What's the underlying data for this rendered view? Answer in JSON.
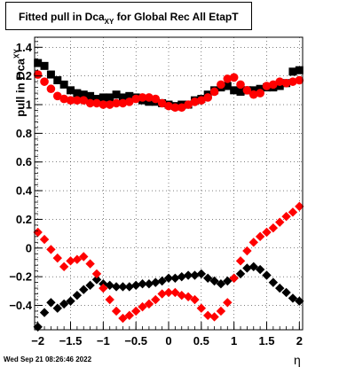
{
  "title": {
    "main": "Fitted pull in Dca",
    "sub": "XY",
    "rest": " for Global Rec All EtapT"
  },
  "ylabel": {
    "main": "pull in Dca",
    "sub": "XY"
  },
  "xlabel": "η",
  "datestamp": "Wed Sep 21 08:26:46 2022",
  "colors": {
    "series_black": "#000000",
    "series_red": "#ff0000",
    "grid": "#000000"
  },
  "chart_data": {
    "type": "scatter",
    "title": "Fitted pull in Dca_XY for Global Rec All EtapT",
    "xlabel": "η",
    "ylabel": "pull in Dca_XY",
    "xlim": [
      -2.05,
      2.05
    ],
    "ylim": [
      -0.57,
      1.47
    ],
    "xticks": [
      -2,
      -1.5,
      -1,
      -0.5,
      0,
      0.5,
      1,
      1.5,
      2
    ],
    "xtick_labels": [
      "−2",
      "−1.5",
      "−1",
      "−0.5",
      "0",
      "0.5",
      "1",
      "1.5",
      "2"
    ],
    "yticks": [
      -0.4,
      -0.2,
      0,
      0.2,
      0.4,
      0.6,
      0.8,
      1,
      1.2,
      1.4
    ],
    "ytick_labels": [
      "−0.4",
      "−0.2",
      "0",
      "0.2",
      "0.4",
      "0.6",
      "0.8",
      "1",
      "1.2",
      "1.4"
    ],
    "grid": true,
    "legend": "none",
    "series": [
      {
        "marker": "square",
        "color": "#000000",
        "x": [
          -2.0,
          -1.9,
          -1.8,
          -1.7,
          -1.6,
          -1.5,
          -1.4,
          -1.3,
          -1.2,
          -1.1,
          -1.0,
          -0.9,
          -0.8,
          -0.7,
          -0.6,
          -0.5,
          -0.4,
          -0.3,
          -0.2,
          -0.1,
          0.0,
          0.1,
          0.2,
          0.3,
          0.4,
          0.5,
          0.6,
          0.7,
          0.8,
          0.9,
          1.0,
          1.1,
          1.2,
          1.3,
          1.4,
          1.5,
          1.6,
          1.7,
          1.8,
          1.9,
          2.0
        ],
        "y": [
          1.29,
          1.27,
          1.21,
          1.17,
          1.14,
          1.1,
          1.08,
          1.07,
          1.06,
          1.04,
          1.05,
          1.05,
          1.07,
          1.05,
          1.06,
          1.05,
          1.03,
          1.02,
          1.02,
          1.01,
          1.0,
          0.99,
          1.0,
          1.0,
          1.03,
          1.04,
          1.07,
          1.1,
          1.12,
          1.13,
          1.1,
          1.09,
          1.1,
          1.1,
          1.11,
          1.12,
          1.12,
          1.13,
          1.15,
          1.23,
          1.24
        ]
      },
      {
        "marker": "circle",
        "color": "#ff0000",
        "x": [
          -2.0,
          -1.9,
          -1.8,
          -1.7,
          -1.6,
          -1.5,
          -1.4,
          -1.3,
          -1.2,
          -1.1,
          -1.0,
          -0.9,
          -0.8,
          -0.7,
          -0.6,
          -0.5,
          -0.4,
          -0.3,
          -0.2,
          -0.1,
          0.0,
          0.1,
          0.2,
          0.3,
          0.4,
          0.5,
          0.6,
          0.7,
          0.8,
          0.9,
          1.0,
          1.1,
          1.2,
          1.3,
          1.4,
          1.5,
          1.6,
          1.7,
          1.8,
          1.9,
          2.0
        ],
        "y": [
          1.21,
          1.16,
          1.11,
          1.06,
          1.04,
          1.03,
          1.03,
          1.03,
          1.01,
          1.01,
          1.0,
          1.0,
          1.01,
          1.01,
          1.02,
          1.04,
          1.05,
          1.05,
          1.04,
          1.01,
          0.99,
          0.98,
          0.98,
          1.0,
          1.02,
          1.03,
          1.05,
          1.09,
          1.14,
          1.18,
          1.19,
          1.14,
          1.1,
          1.07,
          1.08,
          1.13,
          1.14,
          1.16,
          1.15,
          1.16,
          1.17
        ]
      },
      {
        "marker": "diamond",
        "color": "#000000",
        "x": [
          -2.0,
          -1.9,
          -1.8,
          -1.7,
          -1.6,
          -1.5,
          -1.4,
          -1.3,
          -1.2,
          -1.1,
          -1.0,
          -0.9,
          -0.8,
          -0.7,
          -0.6,
          -0.5,
          -0.4,
          -0.3,
          -0.2,
          -0.1,
          0.0,
          0.1,
          0.2,
          0.3,
          0.4,
          0.5,
          0.6,
          0.7,
          0.8,
          0.9,
          1.0,
          1.1,
          1.2,
          1.3,
          1.4,
          1.5,
          1.6,
          1.7,
          1.8,
          1.9,
          2.0
        ],
        "y": [
          -0.55,
          -0.45,
          -0.38,
          -0.42,
          -0.39,
          -0.37,
          -0.33,
          -0.29,
          -0.26,
          -0.22,
          -0.25,
          -0.26,
          -0.27,
          -0.27,
          -0.27,
          -0.26,
          -0.25,
          -0.25,
          -0.24,
          -0.23,
          -0.21,
          -0.21,
          -0.2,
          -0.19,
          -0.19,
          -0.18,
          -0.21,
          -0.23,
          -0.25,
          -0.23,
          -0.21,
          -0.18,
          -0.14,
          -0.13,
          -0.15,
          -0.19,
          -0.24,
          -0.28,
          -0.31,
          -0.35,
          -0.37
        ]
      },
      {
        "marker": "diamond",
        "color": "#ff0000",
        "x": [
          -2.0,
          -1.9,
          -1.8,
          -1.7,
          -1.6,
          -1.5,
          -1.4,
          -1.3,
          -1.2,
          -1.1,
          -1.0,
          -0.9,
          -0.8,
          -0.7,
          -0.6,
          -0.5,
          -0.4,
          -0.3,
          -0.2,
          -0.1,
          0.0,
          0.1,
          0.2,
          0.3,
          0.4,
          0.5,
          0.6,
          0.7,
          0.8,
          0.9,
          1.0,
          1.1,
          1.2,
          1.3,
          1.4,
          1.5,
          1.6,
          1.7,
          1.8,
          1.9,
          2.0
        ],
        "y": [
          0.11,
          0.06,
          -0.01,
          -0.07,
          -0.13,
          -0.09,
          -0.08,
          -0.06,
          -0.11,
          -0.18,
          -0.28,
          -0.36,
          -0.44,
          -0.49,
          -0.47,
          -0.44,
          -0.41,
          -0.39,
          -0.36,
          -0.32,
          -0.31,
          -0.31,
          -0.33,
          -0.34,
          -0.36,
          -0.42,
          -0.47,
          -0.48,
          -0.44,
          -0.38,
          -0.21,
          -0.09,
          -0.02,
          0.04,
          0.08,
          0.11,
          0.14,
          0.18,
          0.22,
          0.25,
          0.29
        ]
      }
    ]
  }
}
